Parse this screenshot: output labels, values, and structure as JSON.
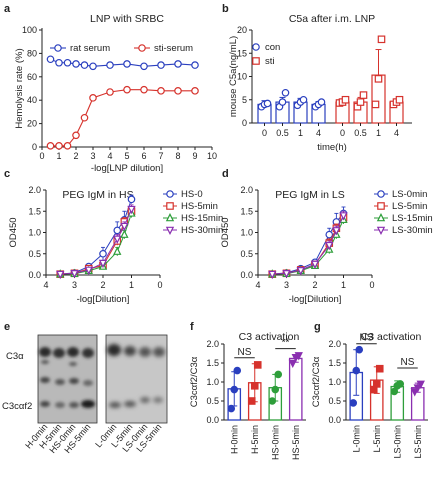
{
  "panels": {
    "a": "a",
    "b": "b",
    "c": "c",
    "d": "d",
    "e": "e",
    "f": "f",
    "g": "g"
  },
  "blot": {
    "band_top": "C3α",
    "band_bottom": "C3cαf2",
    "lanes_left": [
      "H-0min",
      "H-5min",
      "HS-0min",
      "HS-5min"
    ],
    "lanes_right": [
      "L-0min",
      "L-5min",
      "LS-0min",
      "LS-5min"
    ]
  },
  "chart_data": [
    {
      "panel": "a",
      "type": "line",
      "title": "LNP with SRBC",
      "xlabel": "-log[LNP dilution]",
      "ylabel": "Hemolysis rate (%)",
      "xlim": [
        0,
        10
      ],
      "ylim": [
        0,
        100
      ],
      "xticks": [
        0,
        1,
        2,
        3,
        4,
        5,
        6,
        7,
        8,
        9,
        10
      ],
      "yticks": [
        0,
        20,
        40,
        60,
        80,
        100
      ],
      "legend": "top",
      "series": [
        {
          "name": "rat serum",
          "color": "#2a3fbf",
          "marker": "circle",
          "x": [
            0.5,
            1,
            1.5,
            2,
            2.5,
            3,
            4,
            5,
            6,
            7,
            8,
            9
          ],
          "y": [
            75,
            72,
            72,
            71,
            70,
            69,
            70,
            71,
            69,
            70,
            71,
            70
          ]
        },
        {
          "name": "sti-serum",
          "color": "#d6322c",
          "marker": "circle",
          "x": [
            0.5,
            1,
            1.5,
            2,
            2.5,
            3,
            4,
            5,
            6,
            7,
            8,
            9
          ],
          "y": [
            1,
            1,
            1,
            10,
            25,
            42,
            47,
            49,
            49,
            48,
            48,
            48
          ]
        }
      ]
    },
    {
      "panel": "b",
      "type": "bar",
      "title": "C5a after i.m. LNP",
      "xlabel": "time(h)",
      "ylabel": "mouse C5a(ng/mL)",
      "ylim": [
        0,
        20
      ],
      "yticks": [
        0,
        5,
        10,
        15,
        20
      ],
      "legend": "top-left",
      "groups": [
        "0",
        "0.5",
        "1",
        "4"
      ],
      "series": [
        {
          "name": "con",
          "color": "#2a3fbf",
          "marker": "circle",
          "values": [
            4.0,
            4.5,
            4.5,
            4.0
          ],
          "err": [
            0.8,
            1.0,
            0.8,
            0.6
          ],
          "points": [
            [
              3.5,
              4,
              4.2
            ],
            [
              3.5,
              4.5,
              6.5
            ],
            [
              3.8,
              4.5,
              5
            ],
            [
              3.5,
              4,
              4.5
            ]
          ]
        },
        {
          "name": "sti",
          "color": "#d6322c",
          "marker": "square",
          "values": [
            4.5,
            4.5,
            10.3,
            4.5
          ],
          "err": [
            0.5,
            1.0,
            5.5,
            0.6
          ],
          "points": [
            [
              4.3,
              4.5,
              5
            ],
            [
              3.5,
              4.5,
              6
            ],
            [
              4,
              9.5,
              18
            ],
            [
              4,
              4.5,
              5
            ]
          ]
        }
      ]
    },
    {
      "panel": "c",
      "type": "line",
      "title": "PEG IgM in HS",
      "xlabel": "-log[Dilution]",
      "ylabel": "OD450",
      "xlim": [
        4,
        0
      ],
      "ylim": [
        0,
        2.0
      ],
      "xticks": [
        4,
        3,
        2,
        1,
        0
      ],
      "yticks": [
        0.0,
        0.5,
        1.0,
        1.5,
        2.0
      ],
      "legend": "right",
      "x": [
        3.5,
        3.0,
        2.5,
        2.0,
        1.5,
        1.25,
        1.0
      ],
      "series": [
        {
          "name": "HS-0",
          "color": "#2a3fbf",
          "marker": "circle",
          "y": [
            0.02,
            0.05,
            0.2,
            0.5,
            1.05,
            1.3,
            1.78
          ],
          "err": [
            0.02,
            0.03,
            0.05,
            0.15,
            0.2,
            0.2,
            0.1
          ]
        },
        {
          "name": "HS-5min",
          "color": "#d6322c",
          "marker": "square",
          "y": [
            0.02,
            0.04,
            0.15,
            0.22,
            0.8,
            1.25,
            1.5
          ],
          "err": [
            0.01,
            0.02,
            0.05,
            0.05,
            0.1,
            0.1,
            0.1
          ]
        },
        {
          "name": "HS-15min",
          "color": "#2e9e3a",
          "marker": "triangle-up",
          "y": [
            0.02,
            0.03,
            0.1,
            0.2,
            0.55,
            0.95,
            1.45
          ],
          "err": [
            0.01,
            0.02,
            0.03,
            0.05,
            0.1,
            0.1,
            0.1
          ]
        },
        {
          "name": "HS-30min",
          "color": "#8a2fb0",
          "marker": "triangle-down",
          "y": [
            0.02,
            0.04,
            0.12,
            0.28,
            0.85,
            1.15,
            1.55
          ],
          "err": [
            0.01,
            0.02,
            0.04,
            0.05,
            0.1,
            0.1,
            0.1
          ]
        }
      ]
    },
    {
      "panel": "d",
      "type": "line",
      "title": "PEG IgM in LS",
      "xlabel": "-log[Dilution]",
      "ylabel": "OD450",
      "xlim": [
        4,
        0
      ],
      "ylim": [
        0,
        2.0
      ],
      "xticks": [
        4,
        3,
        2,
        1,
        0
      ],
      "yticks": [
        0.0,
        0.5,
        1.0,
        1.5,
        2.0
      ],
      "legend": "right",
      "x": [
        3.5,
        3.0,
        2.5,
        2.0,
        1.5,
        1.25,
        1.0
      ],
      "series": [
        {
          "name": "LS-0min",
          "color": "#2a3fbf",
          "marker": "circle",
          "y": [
            0.02,
            0.05,
            0.15,
            0.3,
            0.95,
            1.25,
            1.45
          ],
          "err": [
            0.01,
            0.03,
            0.05,
            0.05,
            0.15,
            0.2,
            0.15
          ]
        },
        {
          "name": "LS-5min",
          "color": "#d6322c",
          "marker": "square",
          "y": [
            0.02,
            0.04,
            0.12,
            0.25,
            0.75,
            1.1,
            1.35
          ],
          "err": [
            0.01,
            0.02,
            0.04,
            0.05,
            0.1,
            0.1,
            0.1
          ]
        },
        {
          "name": "LS-15min",
          "color": "#2e9e3a",
          "marker": "triangle-up",
          "y": [
            0.02,
            0.03,
            0.1,
            0.22,
            0.6,
            0.95,
            1.3
          ],
          "err": [
            0.01,
            0.02,
            0.03,
            0.05,
            0.1,
            0.1,
            0.1
          ]
        },
        {
          "name": "LS-30min",
          "color": "#8a2fb0",
          "marker": "triangle-down",
          "y": [
            0.02,
            0.04,
            0.11,
            0.26,
            0.7,
            1.05,
            1.4
          ],
          "err": [
            0.01,
            0.02,
            0.04,
            0.05,
            0.1,
            0.1,
            0.1
          ]
        }
      ]
    },
    {
      "panel": "f",
      "type": "bar",
      "title": "C3 activation",
      "ylabel": "C3cαf2/C3α",
      "ylim": [
        0,
        2.0
      ],
      "yticks": [
        0.0,
        0.5,
        1.0,
        1.5,
        2.0
      ],
      "categories": [
        "H-0min",
        "H-5min",
        "HS-0min",
        "HS-5min"
      ],
      "colors": [
        "#2a3fbf",
        "#d6322c",
        "#2e9e3a",
        "#8a2fb0"
      ],
      "values": [
        0.82,
        0.98,
        0.85,
        1.62
      ],
      "err": [
        0.45,
        0.5,
        0.35,
        0.1
      ],
      "points": [
        [
          0.3,
          0.8,
          1.3
        ],
        [
          0.5,
          0.9,
          1.45
        ],
        [
          0.5,
          0.8,
          1.2
        ],
        [
          1.5,
          1.65,
          1.7
        ]
      ],
      "annotations": [
        {
          "text": "NS",
          "between": [
            0,
            1
          ]
        },
        {
          "text": "**",
          "between": [
            2,
            3
          ]
        }
      ]
    },
    {
      "panel": "g",
      "type": "bar",
      "title": "C3 activation",
      "ylabel": "C3cαf2/C3α",
      "ylim": [
        0,
        2.0
      ],
      "yticks": [
        0.0,
        0.5,
        1.0,
        1.5,
        2.0
      ],
      "categories": [
        "L-0min",
        "L-5min",
        "LS-0min",
        "LS-5min"
      ],
      "colors": [
        "#2a3fbf",
        "#d6322c",
        "#2e9e3a",
        "#8a2fb0"
      ],
      "values": [
        1.25,
        1.05,
        0.88,
        0.85
      ],
      "err": [
        0.6,
        0.35,
        0.15,
        0.12
      ],
      "points": [
        [
          0.45,
          1.3,
          1.85
        ],
        [
          0.8,
          0.95,
          1.35
        ],
        [
          0.75,
          0.9,
          0.95
        ],
        [
          0.75,
          0.85,
          0.95
        ]
      ],
      "annotations": [
        {
          "text": "NS",
          "between": [
            0,
            1
          ]
        },
        {
          "text": "NS",
          "between": [
            2,
            3
          ]
        }
      ]
    }
  ]
}
